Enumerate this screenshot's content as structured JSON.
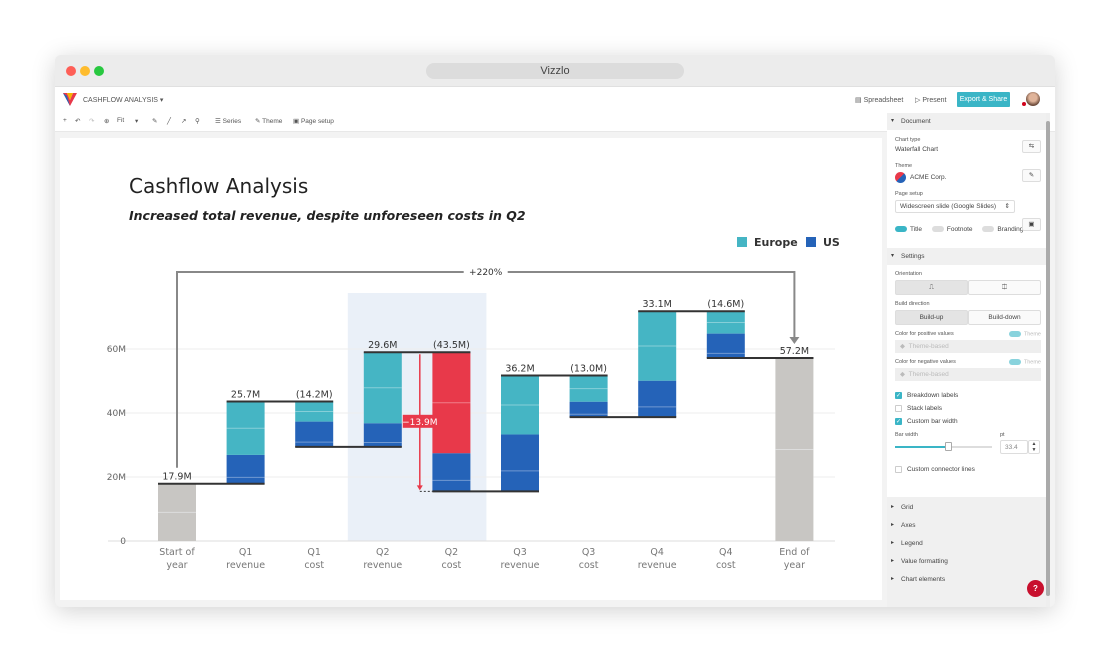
{
  "window": {
    "title": "Vizzlo"
  },
  "header": {
    "doc_title": "CASHFLOW ANALYSIS ▾",
    "spreadsheet": "Spreadsheet",
    "present": "Present",
    "export": "Export & Share"
  },
  "toolbar": {
    "zoom": "Fit",
    "series": "Series",
    "theme": "Theme",
    "page_setup": "Page setup"
  },
  "sidebar": {
    "document": "Document",
    "chart_type_label": "Chart type",
    "chart_type": "Waterfall Chart",
    "theme_label": "Theme",
    "theme": "ACME Corp.",
    "page_setup_label": "Page setup",
    "page_setup": "Widescreen slide (Google Slides)",
    "toggles": [
      {
        "label": "Title",
        "on": true
      },
      {
        "label": "Footnote",
        "on": false
      },
      {
        "label": "Branding",
        "on": false
      }
    ],
    "settings": "Settings",
    "orientation_label": "Orientation",
    "build_direction_label": "Build direction",
    "build_up": "Build-up",
    "build_down": "Build-down",
    "pos_color_label": "Color for positive values",
    "neg_color_label": "Color for negative values",
    "theme_toggle": "Theme",
    "theme_based": "Theme-based",
    "checks": [
      {
        "label": "Breakdown labels",
        "on": true
      },
      {
        "label": "Stack labels",
        "on": false
      },
      {
        "label": "Custom bar width",
        "on": true
      }
    ],
    "bar_width_label": "Bar width",
    "unit": "pt",
    "bar_width": "33.4",
    "bar_width_slider_pct": 55,
    "custom_connector": "Custom connector lines",
    "collapsed": [
      "Grid",
      "Axes",
      "Legend",
      "Value formatting",
      "Chart elements"
    ],
    "help": "?"
  },
  "colors": {
    "europe": "#45b5c4",
    "us": "#2563b8",
    "negative_highlight": "#e8394a",
    "total": "#c8c6c3",
    "accent": "#3ab5c6"
  },
  "chart_data": {
    "type": "waterfall",
    "title": "Cashflow Analysis",
    "subtitle": "Increased total revenue, despite unforeseen costs in Q2",
    "legend": [
      "Europe",
      "US"
    ],
    "legend_position": "top-right",
    "ylim": [
      0,
      70
    ],
    "yticks": [
      {
        "v": 0,
        "label": "0"
      },
      {
        "v": 20,
        "label": "20M"
      },
      {
        "v": 40,
        "label": "40M"
      },
      {
        "v": 60,
        "label": "60M"
      }
    ],
    "grid": true,
    "categories": [
      [
        "Start of",
        "year"
      ],
      [
        "Q1",
        "revenue"
      ],
      [
        "Q1",
        "cost"
      ],
      [
        "Q2",
        "revenue"
      ],
      [
        "Q2",
        "cost"
      ],
      [
        "Q3",
        "revenue"
      ],
      [
        "Q3",
        "cost"
      ],
      [
        "Q4",
        "revenue"
      ],
      [
        "Q4",
        "cost"
      ],
      [
        "End of",
        "year"
      ]
    ],
    "bars": [
      {
        "kind": "total",
        "value": 17.9,
        "label": "17.9M"
      },
      {
        "kind": "delta",
        "europe": 16.7,
        "us": 9.0,
        "label": "25.7M"
      },
      {
        "kind": "delta",
        "europe": -6.3,
        "us": -7.9,
        "label": "(14.2M)"
      },
      {
        "kind": "delta",
        "europe": 22.2,
        "us": 7.4,
        "label": "29.6M"
      },
      {
        "kind": "delta",
        "europe": -31.6,
        "us": -11.9,
        "label": "(43.5M)",
        "highlight_europe": true
      },
      {
        "kind": "delta",
        "europe": 18.4,
        "us": 17.8,
        "label": "36.2M"
      },
      {
        "kind": "delta",
        "europe": -8.2,
        "us": -4.8,
        "label": "(13.0M)"
      },
      {
        "kind": "delta",
        "europe": 21.7,
        "us": 11.4,
        "label": "33.1M"
      },
      {
        "kind": "delta",
        "europe": -7.0,
        "us": -7.6,
        "label": "(14.6M)"
      },
      {
        "kind": "total",
        "value": 57.2,
        "label": "57.2M"
      }
    ],
    "highlight_range": [
      3,
      4
    ],
    "difference": {
      "from": 3,
      "to": 4,
      "label": "−13.9M"
    },
    "total_change": {
      "from": 0,
      "to": 9,
      "label": "+220%"
    }
  }
}
